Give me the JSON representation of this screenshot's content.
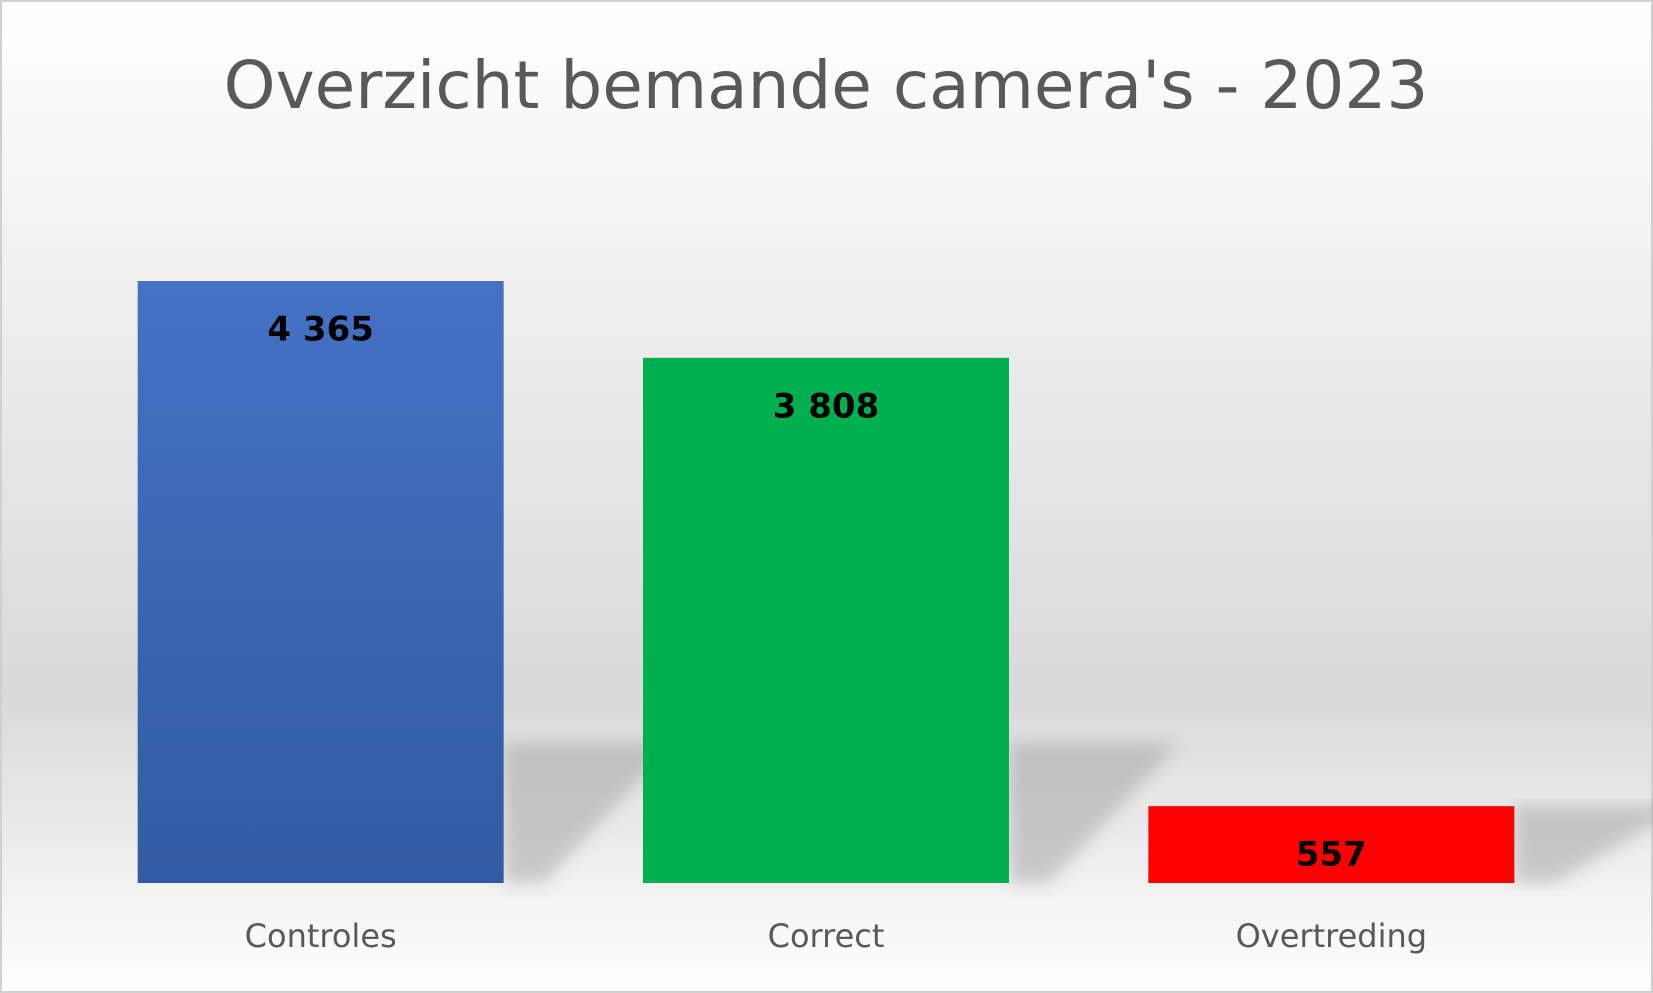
{
  "chart_data": {
    "type": "bar",
    "title": "Overzicht bemande camera's - 2023",
    "categories": [
      "Controles",
      "Correct",
      "Overtreding"
    ],
    "values": [
      4365,
      3808,
      557
    ],
    "value_labels": [
      "4 365",
      "3 808",
      "557"
    ],
    "colors": [
      "#4472c4",
      "#00b050",
      "#ff0000"
    ]
  }
}
